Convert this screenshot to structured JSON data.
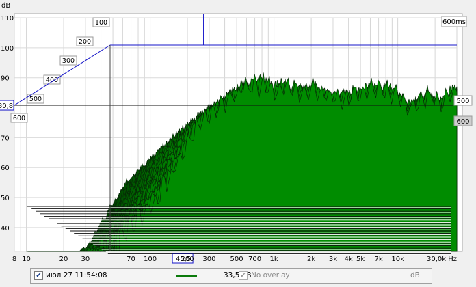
{
  "chart_data": {
    "type": "area",
    "subtype": "waterfall",
    "title": "",
    "x_axis": {
      "scale": "log",
      "tick_labels": [
        "8",
        "10",
        "20",
        "30",
        "45,5",
        "70",
        "100",
        "200",
        "300",
        "500",
        "700",
        "1k",
        "2k",
        "3k",
        "4k",
        "5k",
        "7k",
        "10k",
        "30,0k Hz"
      ],
      "tick_values": [
        8,
        10,
        20,
        30,
        45.5,
        70,
        100,
        200,
        300,
        500,
        700,
        1000,
        2000,
        3000,
        4000,
        5000,
        7000,
        10000,
        30000
      ],
      "range": [
        8,
        30000
      ],
      "cursor_value": "45,5"
    },
    "y_axis": {
      "unit": "dB",
      "tick_labels": [
        "110",
        "100",
        "90",
        "80,8",
        "70",
        "60",
        "50",
        "40"
      ],
      "tick_values": [
        110,
        100,
        90,
        80.8,
        70,
        60,
        50,
        40
      ],
      "range": [
        32,
        110
      ],
      "cursor_value": "80,8"
    },
    "time_axis": {
      "tick_labels": [
        "100",
        "200",
        "300",
        "400",
        "500",
        "600"
      ],
      "tick_values": [
        100,
        200,
        300,
        400,
        500,
        600
      ],
      "max_label": "600ms"
    },
    "right_tags": [
      "500",
      "600"
    ],
    "front_curve": {
      "description_free": true,
      "x": [
        10,
        20,
        30,
        40,
        50,
        60,
        80,
        100,
        150,
        200,
        300,
        400,
        500,
        700,
        1000,
        1500,
        2000,
        3000,
        4000,
        5000,
        7000,
        10000,
        15000,
        20000,
        30000
      ],
      "y": [
        38,
        48,
        58,
        66,
        73,
        78,
        83,
        86,
        90,
        94,
        95,
        93,
        94,
        92,
        93,
        91,
        90,
        91,
        93,
        93,
        92,
        86,
        91,
        88,
        93
      ]
    },
    "series_color": "#0b6b0b",
    "cursor_color": "#1414c8"
  },
  "legend": {
    "date_label": "июл 27 11:54:08",
    "value": "33,5 dB",
    "overlay_label": "No overlay",
    "unit": "dB"
  }
}
